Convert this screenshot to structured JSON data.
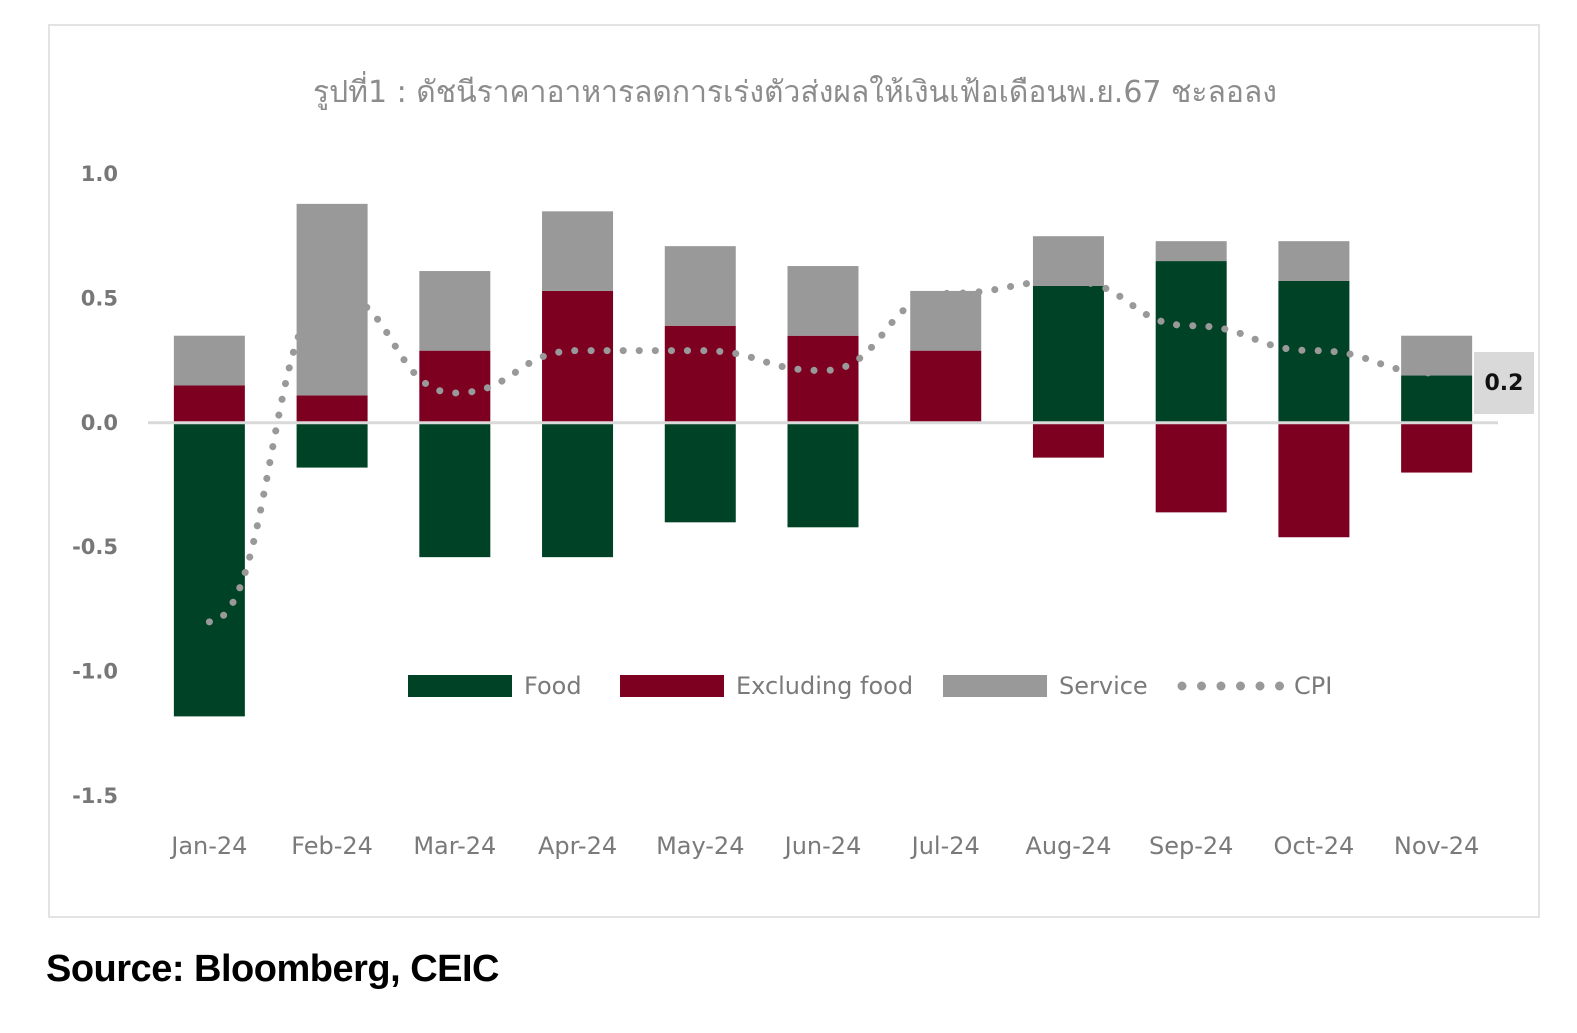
{
  "source": "Source: Bloomberg, CEIC",
  "colors": {
    "food": "#004225",
    "excluding_food": "#7d0021",
    "service": "#999999",
    "cpi": "#999999",
    "zero_line": "#d9d9d9",
    "callout_bg": "#d9d9d9"
  },
  "chart_data": {
    "type": "bar",
    "stacked": true,
    "title": "รูปที่1 : ดัชนีราคาอาหารลดการเร่งตัวส่งผลให้เงินเฟ้อเดือนพ.ย.67 ชะลอลง",
    "categories": [
      "Jan-24",
      "Feb-24",
      "Mar-24",
      "Apr-24",
      "May-24",
      "Jun-24",
      "Jul-24",
      "Aug-24",
      "Sep-24",
      "Oct-24",
      "Nov-24"
    ],
    "ylim": [
      -1.5,
      1.0
    ],
    "yticks": [
      "1.0",
      "0.5",
      "0.0",
      "-0.5",
      "-1.0",
      "-1.5"
    ],
    "ytick_values": [
      1.0,
      0.5,
      0.0,
      -0.5,
      -1.0,
      -1.5
    ],
    "grid": false,
    "legend_position": "center-bottom",
    "series": [
      {
        "name": "Food",
        "kind": "bar",
        "values": [
          -1.18,
          -0.18,
          -0.54,
          -0.54,
          -0.4,
          -0.42,
          0.0,
          0.55,
          0.65,
          0.57,
          0.19
        ]
      },
      {
        "name": "Excluding food",
        "kind": "bar",
        "values": [
          0.15,
          0.11,
          0.29,
          0.53,
          0.39,
          0.35,
          0.29,
          -0.14,
          -0.36,
          -0.46,
          -0.2
        ]
      },
      {
        "name": "Service",
        "kind": "bar",
        "values": [
          0.2,
          0.77,
          0.32,
          0.32,
          0.32,
          0.28,
          0.24,
          0.2,
          0.08,
          0.16,
          0.16
        ]
      },
      {
        "name": "CPI",
        "kind": "line-dotted",
        "values": [
          -0.8,
          0.52,
          0.12,
          0.29,
          0.29,
          0.21,
          0.52,
          0.57,
          0.39,
          0.29,
          0.2
        ]
      }
    ],
    "annotation": {
      "category": "Nov-24",
      "label": "0.2"
    }
  }
}
